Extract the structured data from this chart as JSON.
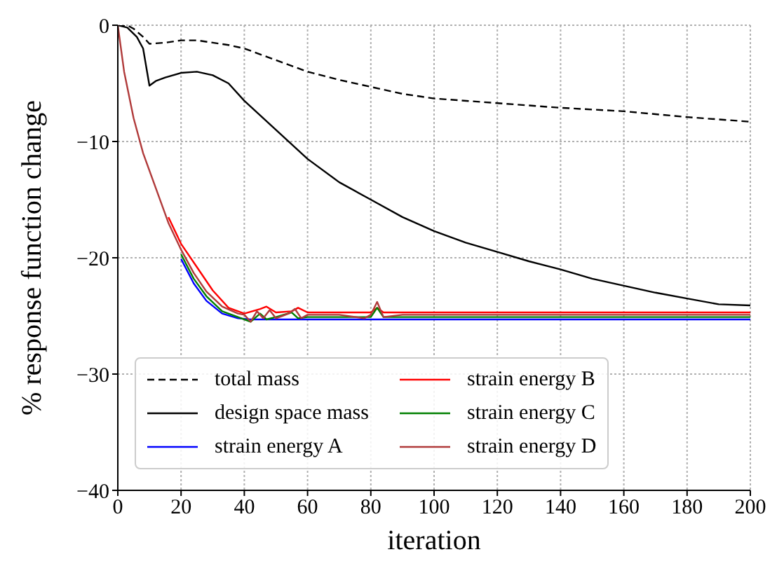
{
  "chart_data": {
    "type": "line",
    "xlabel": "iteration",
    "ylabel": "% response function change",
    "xlim": [
      0,
      200
    ],
    "ylim": [
      -40,
      0
    ],
    "xticks": [
      0,
      20,
      40,
      60,
      80,
      100,
      120,
      140,
      160,
      180,
      200
    ],
    "yticks": [
      {
        "value": -40,
        "label": "−40"
      },
      {
        "value": -30,
        "label": "−30"
      },
      {
        "value": -20,
        "label": "−20"
      },
      {
        "value": -10,
        "label": "−10"
      },
      0
    ],
    "grid": true,
    "legend": "bottom",
    "marker": "none",
    "series": [
      {
        "name": "total mass",
        "color": "#000000",
        "line_style": "dashed",
        "x": [
          0,
          3,
          5,
          8,
          10,
          15,
          20,
          25,
          30,
          35,
          40,
          50,
          60,
          70,
          80,
          90,
          100,
          120,
          140,
          160,
          180,
          200
        ],
        "values": [
          0,
          0,
          -0.3,
          -1,
          -1.6,
          -1.5,
          -1.3,
          -1.3,
          -1.5,
          -1.7,
          -2,
          -3,
          -4,
          -4.7,
          -5.3,
          -5.9,
          -6.3,
          -6.7,
          -7.1,
          -7.4,
          -7.9,
          -8.3
        ]
      },
      {
        "name": "design space mass",
        "color": "#000000",
        "line_style": "solid",
        "x": [
          0,
          3,
          6,
          8,
          10,
          12,
          15,
          20,
          25,
          30,
          35,
          40,
          50,
          60,
          70,
          80,
          90,
          100,
          110,
          120,
          130,
          140,
          150,
          160,
          170,
          180,
          190,
          200
        ],
        "values": [
          0,
          -0.2,
          -1,
          -2,
          -5.2,
          -4.8,
          -4.5,
          -4.1,
          -4,
          -4.3,
          -5,
          -6.5,
          -9,
          -11.5,
          -13.5,
          -15,
          -16.5,
          -17.7,
          -18.7,
          -19.5,
          -20.3,
          -21,
          -21.8,
          -22.4,
          -23,
          -23.5,
          -24,
          -24.1
        ]
      },
      {
        "name": "strain energy A",
        "color": "#0000ff",
        "line_style": "solid",
        "x": [
          20,
          24,
          28,
          33,
          38,
          42,
          50,
          60,
          70,
          80,
          90,
          100,
          120,
          140,
          160,
          180,
          200
        ],
        "values": [
          -20.1,
          -22.2,
          -23.7,
          -24.8,
          -25.2,
          -25.3,
          -25.3,
          -25.3,
          -25.3,
          -25.3,
          -25.3,
          -25.3,
          -25.3,
          -25.3,
          -25.3,
          -25.3,
          -25.3
        ]
      },
      {
        "name": "strain energy B",
        "color": "#ff0000",
        "line_style": "solid",
        "x": [
          16,
          20,
          25,
          30,
          35,
          40,
          45,
          47,
          50,
          55,
          57,
          60,
          70,
          80,
          82,
          84,
          90,
          100,
          120,
          140,
          160,
          180,
          200
        ],
        "values": [
          -16.5,
          -18.8,
          -20.8,
          -22.8,
          -24.3,
          -24.8,
          -24.4,
          -24.2,
          -24.7,
          -24.6,
          -24.3,
          -24.7,
          -24.7,
          -24.7,
          -24.3,
          -24.7,
          -24.7,
          -24.7,
          -24.7,
          -24.7,
          -24.7,
          -24.7,
          -24.7
        ]
      },
      {
        "name": "strain energy C",
        "color": "#008000",
        "line_style": "solid",
        "x": [
          20,
          24,
          28,
          33,
          38,
          42,
          45,
          47,
          50,
          55,
          57,
          60,
          70,
          80,
          82,
          84,
          90,
          100,
          120,
          140,
          160,
          180,
          200
        ],
        "values": [
          -19.7,
          -21.8,
          -23.3,
          -24.6,
          -25.1,
          -25.5,
          -24.8,
          -25.3,
          -25.1,
          -24.7,
          -25.2,
          -25.1,
          -25.1,
          -25.1,
          -24.3,
          -25.1,
          -25.1,
          -25.1,
          -25.1,
          -25.1,
          -25.1,
          -25.1,
          -25.1
        ]
      },
      {
        "name": "strain energy D",
        "color": "#b03a3a",
        "line_style": "solid",
        "x": [
          0,
          2,
          5,
          8,
          12,
          16,
          20,
          24,
          28,
          33,
          38,
          40,
          42,
          44,
          46,
          48,
          50,
          52,
          54,
          56,
          58,
          60,
          70,
          78,
          80,
          82,
          84,
          90,
          100,
          120,
          140,
          160,
          180,
          200
        ],
        "values": [
          0,
          -4,
          -8,
          -11,
          -14,
          -17,
          -19.3,
          -21.3,
          -22.9,
          -24.2,
          -24.8,
          -24.9,
          -25.5,
          -24.6,
          -25.2,
          -24.5,
          -25.2,
          -25,
          -24.8,
          -24.4,
          -25.2,
          -24.9,
          -24.9,
          -25.2,
          -24.9,
          -23.8,
          -25.1,
          -24.9,
          -24.9,
          -24.9,
          -24.9,
          -24.9,
          -24.9,
          -24.9
        ]
      }
    ]
  }
}
